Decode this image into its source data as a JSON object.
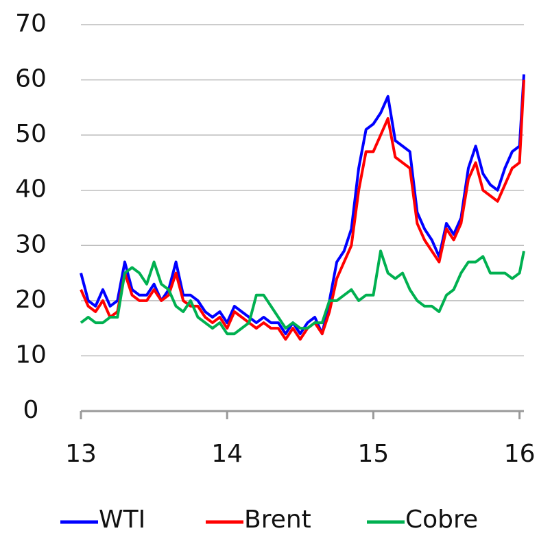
{
  "chart_data": {
    "type": "line",
    "x": [
      13.0,
      13.05,
      13.1,
      13.15,
      13.2,
      13.25,
      13.3,
      13.35,
      13.4,
      13.45,
      13.5,
      13.55,
      13.6,
      13.65,
      13.7,
      13.75,
      13.8,
      13.85,
      13.9,
      13.95,
      14.0,
      14.05,
      14.1,
      14.15,
      14.2,
      14.25,
      14.3,
      14.35,
      14.4,
      14.45,
      14.5,
      14.55,
      14.6,
      14.65,
      14.7,
      14.75,
      14.8,
      14.85,
      14.9,
      14.95,
      15.0,
      15.05,
      15.1,
      15.15,
      15.2,
      15.25,
      15.3,
      15.35,
      15.4,
      15.45,
      15.5,
      15.55,
      15.6,
      15.65,
      15.7,
      15.75,
      15.8,
      15.85,
      15.9,
      15.95,
      16.0,
      16.03
    ],
    "series": [
      {
        "name": "WTI",
        "color": "#0000ff",
        "values": [
          25,
          20,
          19,
          22,
          19,
          20,
          27,
          22,
          21,
          21,
          23,
          20,
          22,
          27,
          21,
          21,
          20,
          18,
          17,
          18,
          16,
          19,
          18,
          17,
          16,
          17,
          16,
          16,
          14,
          16,
          14,
          16,
          17,
          14,
          20,
          27,
          29,
          33,
          44,
          51,
          52,
          54,
          57,
          49,
          48,
          47,
          36,
          33,
          31,
          28,
          34,
          32,
          35,
          44,
          48,
          43,
          41,
          40,
          44,
          47,
          48,
          61
        ]
      },
      {
        "name": "Brent",
        "color": "#ff0000",
        "values": [
          22,
          19,
          18,
          20,
          17,
          18,
          25,
          21,
          20,
          20,
          22,
          20,
          21,
          25,
          20,
          19,
          19,
          17,
          16,
          17,
          15,
          18,
          17,
          16,
          15,
          16,
          15,
          15,
          13,
          15,
          13,
          15,
          16,
          14,
          18,
          24,
          27,
          30,
          40,
          47,
          47,
          50,
          53,
          46,
          45,
          44,
          34,
          31,
          29,
          27,
          33,
          31,
          34,
          42,
          45,
          40,
          39,
          38,
          41,
          44,
          45,
          60
        ]
      },
      {
        "name": "Cobre",
        "color": "#00b050",
        "values": [
          16,
          17,
          16,
          16,
          17,
          17,
          25,
          26,
          25,
          23,
          27,
          23,
          22,
          19,
          18,
          20,
          17,
          16,
          15,
          16,
          14,
          14,
          15,
          16,
          21,
          21,
          19,
          17,
          15,
          16,
          15,
          15,
          16,
          16,
          20,
          20,
          21,
          22,
          20,
          21,
          21,
          29,
          25,
          24,
          25,
          22,
          20,
          19,
          19,
          18,
          21,
          22,
          25,
          27,
          27,
          28,
          25,
          25,
          25,
          24,
          25,
          29
        ]
      }
    ],
    "xlim": [
      13,
      16.03
    ],
    "xticks": [
      13,
      14,
      15,
      16
    ],
    "ylim": [
      0,
      70
    ],
    "yticks": [
      0,
      10,
      20,
      30,
      40,
      50,
      60,
      70
    ],
    "grid": true,
    "legend": "bottom"
  }
}
